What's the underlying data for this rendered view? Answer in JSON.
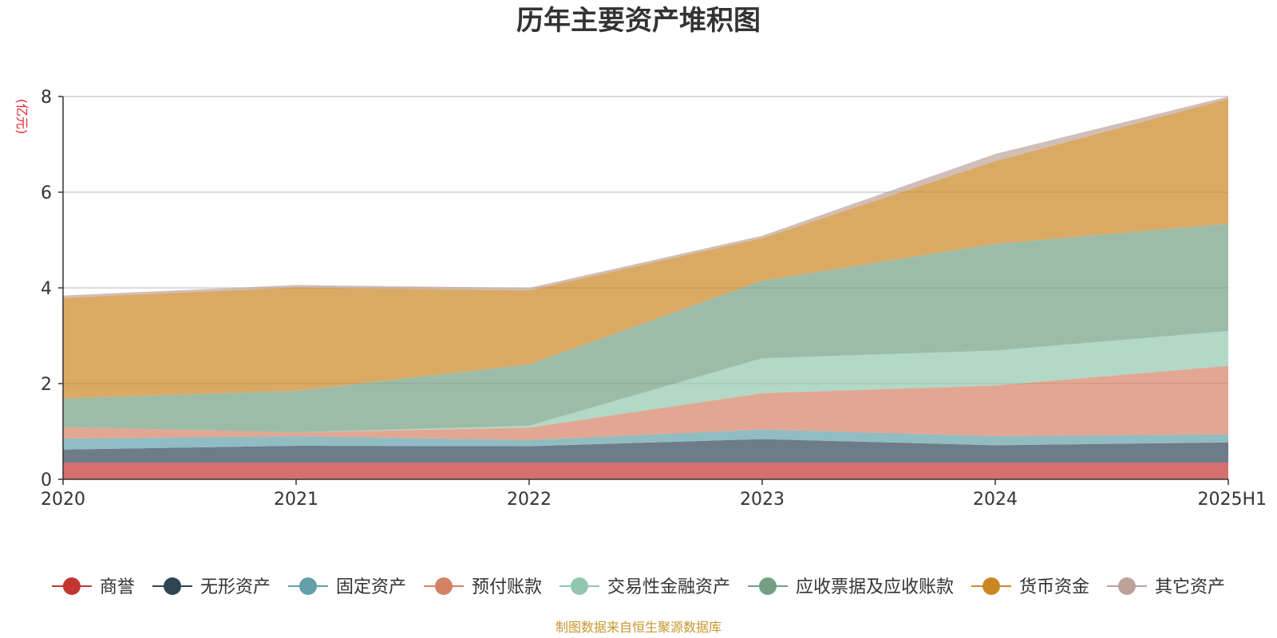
{
  "chart_data": {
    "type": "area",
    "stacked": true,
    "title": "历年主要资产堆积图",
    "unit_label": "(亿元)",
    "xlabel": "",
    "ylabel": "(亿元)",
    "categories": [
      "2020",
      "2021",
      "2022",
      "2023",
      "2024",
      "2025H1"
    ],
    "ylim": [
      0,
      8
    ],
    "yticks": [
      0,
      2,
      4,
      6,
      8
    ],
    "grid": true,
    "legend_position": "bottom",
    "source": "制图数据来自恒生聚源数据库",
    "series": [
      {
        "name": "商誉",
        "color": "#c23531",
        "values": [
          0.35,
          0.35,
          0.35,
          0.35,
          0.35,
          0.35
        ]
      },
      {
        "name": "无形资产",
        "color": "#2f4554",
        "values": [
          0.27,
          0.35,
          0.34,
          0.49,
          0.36,
          0.42
        ]
      },
      {
        "name": "固定资产",
        "color": "#61a0a8",
        "values": [
          0.23,
          0.2,
          0.13,
          0.2,
          0.19,
          0.17
        ]
      },
      {
        "name": "预付账款",
        "color": "#d48265",
        "values": [
          0.24,
          0.08,
          0.26,
          0.76,
          1.06,
          1.43
        ]
      },
      {
        "name": "交易性金融资产",
        "color": "#91c7ae",
        "values": [
          0.0,
          0.0,
          0.04,
          0.73,
          0.73,
          0.73
        ]
      },
      {
        "name": "应收票据及应收账款",
        "color": "#749f83",
        "values": [
          0.6,
          0.87,
          1.28,
          1.62,
          2.23,
          2.24
        ]
      },
      {
        "name": "货币资金",
        "color": "#ca8622",
        "values": [
          2.1,
          2.16,
          1.55,
          0.89,
          1.73,
          2.61
        ]
      },
      {
        "name": "其它资产",
        "color": "#bda29a",
        "values": [
          0.05,
          0.05,
          0.05,
          0.05,
          0.15,
          0.05
        ]
      }
    ]
  }
}
